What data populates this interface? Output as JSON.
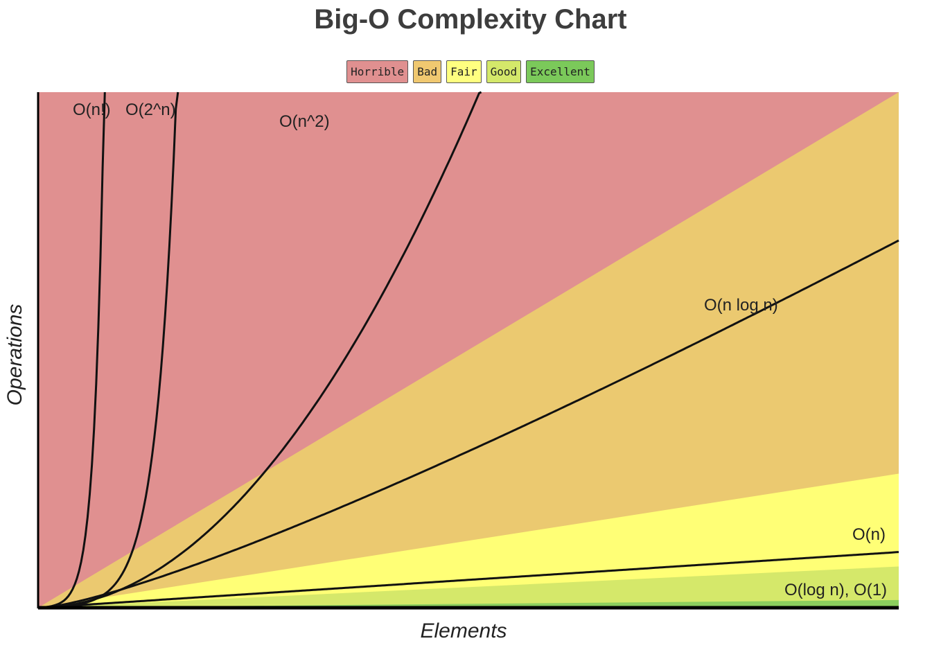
{
  "chart_data": {
    "type": "area",
    "title": "Big-O Complexity Chart",
    "xlabel": "Elements",
    "ylabel": "Operations",
    "legend": [
      {
        "label": "Horrible",
        "color": "#e09090"
      },
      {
        "label": "Bad",
        "color": "#f0c870"
      },
      {
        "label": "Fair",
        "color": "#ffff80"
      },
      {
        "label": "Good",
        "color": "#d4e86a"
      },
      {
        "label": "Excellent",
        "color": "#7bc95a"
      }
    ],
    "legend_position": "top-center",
    "grid": false,
    "xlim": [
      0,
      100
    ],
    "ylim": [
      0,
      1000
    ],
    "regions": [
      {
        "rating": "Horrible",
        "color": "#e09090",
        "lower_slope": 10
      },
      {
        "rating": "Bad",
        "color": "#ebc970",
        "lower_slope": 2.6
      },
      {
        "rating": "Fair",
        "color": "#ffff76",
        "lower_slope": 0.8
      },
      {
        "rating": "Good",
        "color": "#d5e86a",
        "lower_slope": 0.15
      },
      {
        "rating": "Excellent",
        "color": "#8ccf5e",
        "lower_slope": 0
      }
    ],
    "series": [
      {
        "name": "O(n!)",
        "label": "O(n!)"
      },
      {
        "name": "O(2^n)",
        "label": "O(2^n)"
      },
      {
        "name": "O(n^2)",
        "label": "O(n^2)"
      },
      {
        "name": "O(n log n)",
        "label": "O(n log n)"
      },
      {
        "name": "O(n)",
        "label": "O(n)"
      },
      {
        "name": "O(log n), O(1)",
        "label": "O(log n), O(1)"
      }
    ]
  }
}
